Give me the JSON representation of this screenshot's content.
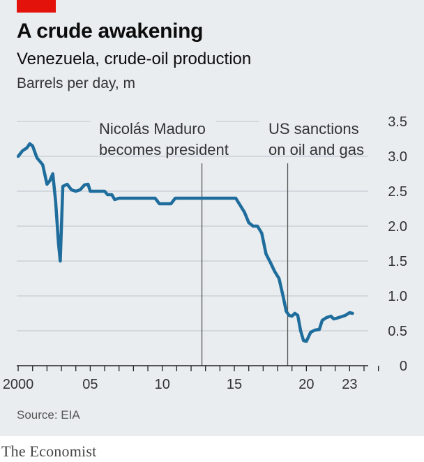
{
  "header": {
    "title": "A crude awakening",
    "subtitle": "Venezuela, crude-oil production",
    "unit": "Barrels per day, m"
  },
  "footer": {
    "source": "Source: EIA",
    "brand": "The Economist"
  },
  "colors": {
    "accent": "#e3120b",
    "line": "#1f6d9c",
    "background": "#e9edf0",
    "grid": "#c4ccd2"
  },
  "chart_data": {
    "type": "line",
    "ylim": [
      0,
      3.5
    ],
    "xlim": [
      1999.9,
      2027.0
    ],
    "yticks": [
      "0",
      "0.5",
      "1.0",
      "1.5",
      "2.0",
      "2.5",
      "3.0",
      "3.5"
    ],
    "xticks": [
      {
        "value": 2000,
        "label": "2000"
      },
      {
        "value": 2005,
        "label": "05"
      },
      {
        "value": 2010,
        "label": "10"
      },
      {
        "value": 2015,
        "label": "15"
      },
      {
        "value": 2020,
        "label": "20"
      },
      {
        "value": 2023,
        "label": "23"
      }
    ],
    "grid": true,
    "annotations": [
      {
        "x": 2012.75,
        "lines": [
          "Nicolás Maduro",
          "becomes president"
        ]
      },
      {
        "x": 2018.7,
        "lines": [
          "US sanctions",
          "on oil and gas"
        ]
      }
    ],
    "series": [
      {
        "points": [
          [
            2000.0,
            3.0
          ],
          [
            2000.3,
            3.08
          ],
          [
            2000.6,
            3.12
          ],
          [
            2000.8,
            3.18
          ],
          [
            2001.0,
            3.15
          ],
          [
            2001.3,
            2.98
          ],
          [
            2001.7,
            2.88
          ],
          [
            2002.0,
            2.6
          ],
          [
            2002.2,
            2.65
          ],
          [
            2002.4,
            2.75
          ],
          [
            2002.6,
            2.35
          ],
          [
            2002.8,
            1.75
          ],
          [
            2002.92,
            1.5
          ],
          [
            2003.1,
            2.57
          ],
          [
            2003.4,
            2.6
          ],
          [
            2003.7,
            2.52
          ],
          [
            2004.0,
            2.5
          ],
          [
            2004.3,
            2.52
          ],
          [
            2004.6,
            2.59
          ],
          [
            2004.85,
            2.6
          ],
          [
            2005.0,
            2.5
          ],
          [
            2005.5,
            2.5
          ],
          [
            2006.0,
            2.5
          ],
          [
            2006.2,
            2.45
          ],
          [
            2006.5,
            2.45
          ],
          [
            2006.7,
            2.38
          ],
          [
            2007.0,
            2.4
          ],
          [
            2008.0,
            2.4
          ],
          [
            2009.0,
            2.4
          ],
          [
            2009.5,
            2.4
          ],
          [
            2009.8,
            2.32
          ],
          [
            2010.2,
            2.32
          ],
          [
            2010.6,
            2.32
          ],
          [
            2010.9,
            2.4
          ],
          [
            2011.5,
            2.4
          ],
          [
            2012.5,
            2.4
          ],
          [
            2013.5,
            2.4
          ],
          [
            2014.5,
            2.4
          ],
          [
            2015.1,
            2.4
          ],
          [
            2015.4,
            2.3
          ],
          [
            2015.7,
            2.2
          ],
          [
            2016.0,
            2.05
          ],
          [
            2016.3,
            2.0
          ],
          [
            2016.6,
            2.0
          ],
          [
            2016.9,
            1.9
          ],
          [
            2017.2,
            1.6
          ],
          [
            2017.5,
            1.48
          ],
          [
            2017.8,
            1.35
          ],
          [
            2018.1,
            1.25
          ],
          [
            2018.4,
            0.98
          ],
          [
            2018.6,
            0.78
          ],
          [
            2018.8,
            0.72
          ],
          [
            2019.0,
            0.71
          ],
          [
            2019.2,
            0.75
          ],
          [
            2019.4,
            0.72
          ],
          [
            2019.6,
            0.5
          ],
          [
            2019.8,
            0.36
          ],
          [
            2020.0,
            0.35
          ],
          [
            2020.3,
            0.48
          ],
          [
            2020.6,
            0.51
          ],
          [
            2020.9,
            0.52
          ],
          [
            2021.1,
            0.65
          ],
          [
            2021.4,
            0.69
          ],
          [
            2021.7,
            0.71
          ],
          [
            2021.9,
            0.67
          ],
          [
            2022.1,
            0.68
          ],
          [
            2022.4,
            0.7
          ],
          [
            2022.7,
            0.72
          ],
          [
            2023.0,
            0.76
          ],
          [
            2023.2,
            0.75
          ]
        ]
      }
    ]
  }
}
